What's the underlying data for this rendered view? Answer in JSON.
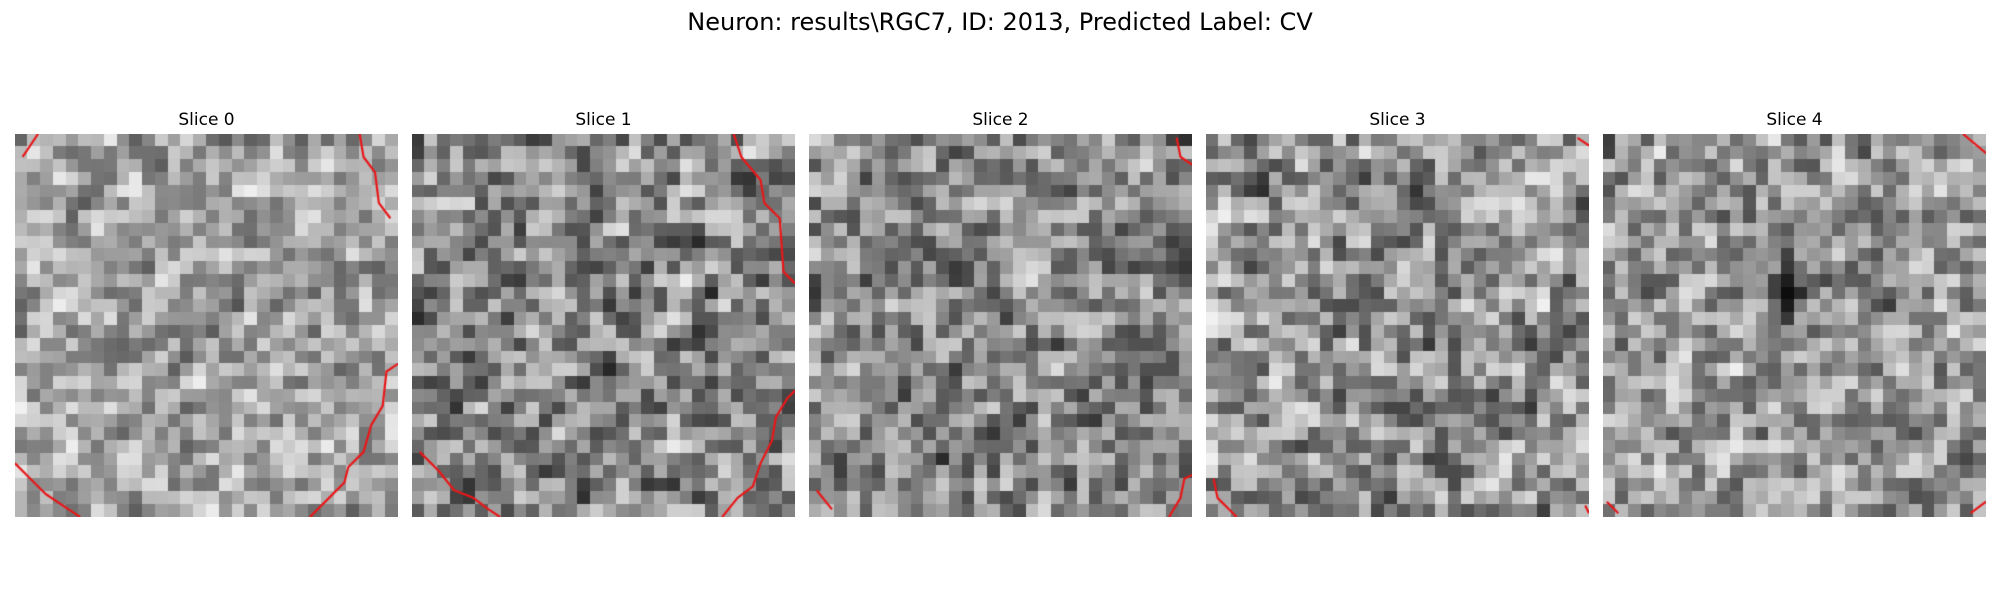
{
  "figure": {
    "suptitle": "Neuron: results\\RGC7, ID: 2013, Predicted Label: CV"
  },
  "panels": [
    {
      "title": "Slice 0"
    },
    {
      "title": "Slice 1"
    },
    {
      "title": "Slice 2"
    },
    {
      "title": "Slice 3"
    },
    {
      "title": "Slice 4"
    }
  ],
  "colors": {
    "contour": "#e8181a",
    "background": "#ffffff"
  }
}
